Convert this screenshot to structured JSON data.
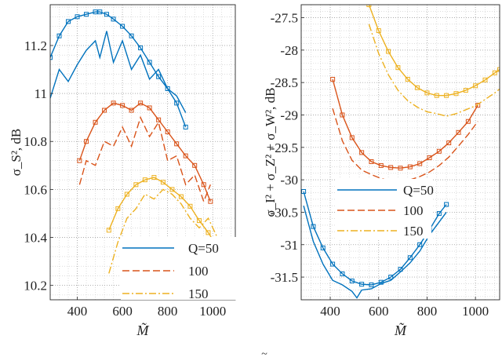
{
  "chart_data": [
    {
      "type": "line",
      "xlabel": "M̃",
      "ylabel": "σ_S², dB",
      "xlim": [
        280,
        1100
      ],
      "ylim": [
        10.14,
        11.37
      ],
      "xticks": [
        400,
        600,
        800,
        1000
      ],
      "yticks": [
        10.2,
        10.4,
        10.6,
        10.8,
        11,
        11.2
      ],
      "xtick_labels": [
        "400",
        "600",
        "800",
        "1000"
      ],
      "ytick_labels": [
        "10.2",
        "10.4",
        "10.6",
        "10.8",
        "11",
        "11.2"
      ],
      "grid": true,
      "legend": {
        "placement": "bottom-right",
        "entries": [
          "Q=50",
          "100",
          "150"
        ]
      },
      "series": [
        {
          "name": "Q=50 (marked)",
          "color": "#0072BD",
          "style": "solid",
          "markers": true,
          "x": [
            280,
            320,
            360,
            400,
            440,
            480,
            500,
            530,
            560,
            600,
            640,
            680,
            720,
            760,
            800,
            840,
            880
          ],
          "values": [
            11.15,
            11.24,
            11.3,
            11.32,
            11.33,
            11.34,
            11.34,
            11.33,
            11.31,
            11.28,
            11.24,
            11.19,
            11.13,
            11.07,
            11.02,
            10.96,
            10.86
          ]
        },
        {
          "name": "Q=50",
          "color": "#0072BD",
          "style": "solid",
          "markers": false,
          "x": [
            280,
            320,
            360,
            400,
            440,
            480,
            500,
            530,
            560,
            600,
            640,
            680,
            720,
            760,
            800,
            840,
            880
          ],
          "values": [
            10.98,
            11.1,
            11.05,
            11.12,
            11.18,
            11.22,
            11.15,
            11.26,
            11.13,
            11.22,
            11.1,
            11.16,
            11.06,
            11.1,
            11.02,
            10.99,
            10.92
          ]
        },
        {
          "name": "100 (marked)",
          "color": "#D95319",
          "style": "solid",
          "markers": true,
          "x": [
            410,
            440,
            480,
            520,
            560,
            600,
            640,
            680,
            720,
            760,
            800,
            840,
            880,
            920,
            960,
            990
          ],
          "values": [
            10.72,
            10.8,
            10.88,
            10.93,
            10.96,
            10.95,
            10.93,
            10.96,
            10.94,
            10.89,
            10.84,
            10.79,
            10.74,
            10.7,
            10.62,
            10.55
          ]
        },
        {
          "name": "100",
          "color": "#D95319",
          "style": "dashed",
          "markers": false,
          "x": [
            410,
            440,
            480,
            520,
            560,
            600,
            640,
            680,
            720,
            760,
            800,
            840,
            880,
            920,
            960,
            990
          ],
          "values": [
            10.62,
            10.72,
            10.7,
            10.8,
            10.78,
            10.86,
            10.78,
            10.9,
            10.82,
            10.88,
            10.72,
            10.74,
            10.62,
            10.66,
            10.55,
            10.62
          ]
        },
        {
          "name": "150 (marked)",
          "color": "#EDB120",
          "style": "solid",
          "markers": true,
          "x": [
            540,
            580,
            620,
            660,
            700,
            740,
            780,
            820,
            860,
            900,
            940,
            980,
            1020,
            1060,
            1100
          ],
          "values": [
            10.43,
            10.52,
            10.58,
            10.62,
            10.64,
            10.65,
            10.63,
            10.6,
            10.57,
            10.53,
            10.47,
            10.42,
            10.36,
            10.27,
            10.15
          ]
        },
        {
          "name": "150",
          "color": "#EDB120",
          "style": "dashdot",
          "markers": false,
          "x": [
            540,
            580,
            620,
            660,
            700,
            740,
            780,
            820,
            860,
            900,
            940,
            980,
            1020,
            1060,
            1100
          ],
          "values": [
            10.25,
            10.38,
            10.48,
            10.52,
            10.58,
            10.56,
            10.6,
            10.58,
            10.54,
            10.48,
            10.44,
            10.48,
            10.4,
            10.3,
            10.35
          ]
        }
      ]
    },
    {
      "type": "line",
      "xlabel": "M̃",
      "ylabel": "σ_I² + σ_Z² + σ_W², dB",
      "xlim": [
        280,
        1100
      ],
      "ylim": [
        -31.85,
        -27.3
      ],
      "xticks": [
        400,
        600,
        800,
        1000
      ],
      "yticks": [
        -31.5,
        -31,
        -30.5,
        -30,
        -29.5,
        -29,
        -28.5,
        -28,
        -27.5
      ],
      "xtick_labels": [
        "400",
        "600",
        "800",
        "1000"
      ],
      "ytick_labels": [
        "-31.5",
        "-31",
        "-30.5",
        "-30",
        "-29.5",
        "-29",
        "-28.5",
        "-28",
        "-27.5"
      ],
      "grid": true,
      "legend": {
        "placement": "middle-left",
        "entries": [
          "Q=50",
          "100",
          "150"
        ]
      },
      "series": [
        {
          "name": "Q=50 (marked)",
          "color": "#0072BD",
          "style": "solid",
          "markers": true,
          "x": [
            290,
            330,
            370,
            410,
            450,
            490,
            530,
            570,
            610,
            650,
            690,
            730,
            770,
            810,
            850,
            880
          ],
          "values": [
            -30.18,
            -30.72,
            -31.05,
            -31.3,
            -31.45,
            -31.56,
            -31.61,
            -31.62,
            -31.58,
            -31.5,
            -31.38,
            -31.2,
            -31.0,
            -30.77,
            -30.52,
            -30.38
          ]
        },
        {
          "name": "Q=50",
          "color": "#0072BD",
          "style": "solid",
          "markers": false,
          "x": [
            290,
            330,
            370,
            410,
            450,
            490,
            510,
            530,
            570,
            610,
            650,
            690,
            730,
            770,
            810,
            850,
            880
          ],
          "values": [
            -30.4,
            -30.95,
            -31.3,
            -31.55,
            -31.62,
            -31.72,
            -31.82,
            -31.7,
            -31.68,
            -31.6,
            -31.55,
            -31.42,
            -31.28,
            -31.1,
            -30.85,
            -30.65,
            -30.5
          ]
        },
        {
          "name": "100 (marked)",
          "color": "#D95319",
          "style": "solid",
          "markers": true,
          "x": [
            410,
            450,
            490,
            530,
            570,
            610,
            650,
            690,
            730,
            770,
            810,
            850,
            890,
            930,
            970,
            1010
          ],
          "values": [
            -28.45,
            -29.0,
            -29.35,
            -29.58,
            -29.72,
            -29.78,
            -29.81,
            -29.82,
            -29.8,
            -29.75,
            -29.66,
            -29.56,
            -29.43,
            -29.27,
            -29.1,
            -28.85
          ]
        },
        {
          "name": "100",
          "color": "#D95319",
          "style": "dashed",
          "markers": false,
          "x": [
            410,
            450,
            490,
            530,
            570,
            610,
            650,
            690,
            730,
            770,
            810,
            850,
            890,
            930,
            970,
            1010
          ],
          "values": [
            -28.9,
            -29.4,
            -29.7,
            -29.85,
            -29.92,
            -29.98,
            -30.02,
            -30.1,
            -30.0,
            -29.95,
            -29.88,
            -29.78,
            -29.65,
            -29.48,
            -29.3,
            -29.1
          ]
        },
        {
          "name": "150 (marked)",
          "color": "#EDB120",
          "style": "solid",
          "markers": true,
          "x": [
            560,
            600,
            640,
            680,
            720,
            760,
            800,
            840,
            880,
            920,
            960,
            1000,
            1040,
            1080,
            1100
          ],
          "values": [
            -27.3,
            -27.7,
            -28.02,
            -28.27,
            -28.45,
            -28.58,
            -28.66,
            -28.7,
            -28.7,
            -28.67,
            -28.62,
            -28.55,
            -28.46,
            -28.35,
            -28.3
          ]
        },
        {
          "name": "150",
          "color": "#EDB120",
          "style": "dashdot",
          "markers": false,
          "x": [
            560,
            600,
            640,
            680,
            720,
            760,
            800,
            840,
            880,
            920,
            960,
            1000,
            1040,
            1080,
            1100
          ],
          "values": [
            -27.6,
            -28.05,
            -28.38,
            -28.62,
            -28.78,
            -28.88,
            -28.95,
            -28.98,
            -29.02,
            -28.98,
            -28.92,
            -28.86,
            -28.76,
            -28.66,
            -28.6
          ]
        }
      ]
    }
  ],
  "caption_fragment": "~"
}
